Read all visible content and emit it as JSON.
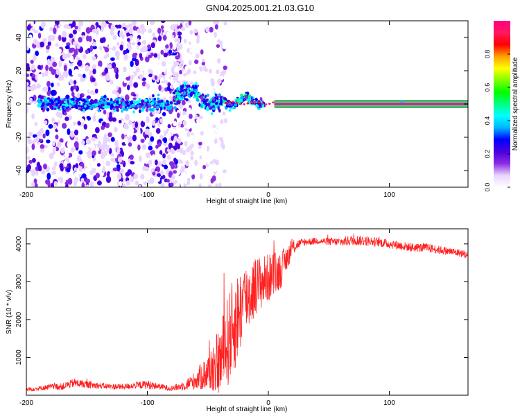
{
  "title": "GN04.2025.001.21.03.G10",
  "chart_data": [
    {
      "type": "heatmap",
      "xlabel": "Height of straight line (km)",
      "ylabel": "Frequency (Hz)",
      "xlim": [
        -200,
        165
      ],
      "ylim": [
        -50,
        50
      ],
      "xticks": [
        "-200",
        "-100",
        "0",
        "100"
      ],
      "yticks": [
        "-40",
        "-20",
        "0",
        "20",
        "40"
      ],
      "grid": false,
      "colorbar": {
        "label": "Normalized spectral amplitude",
        "range": [
          0,
          1
        ],
        "ticks": [
          "0.0",
          "0.2",
          "0.4",
          "0.6",
          "0.8"
        ],
        "colormap": [
          "#ffffff",
          "#e9d4ff",
          "#8a2be2",
          "#4b00e0",
          "#0000ff",
          "#00b4ff",
          "#00ffff",
          "#00ff80",
          "#00ff00",
          "#80ff00",
          "#ffff00",
          "#ffa000",
          "#ff0000",
          "#ff1a60",
          "#ff0080"
        ]
      },
      "features": {
        "noise_region_x": [
          -200,
          -80
        ],
        "scatter_region_x": [
          -80,
          0
        ],
        "clean_tone_x": [
          5,
          165
        ],
        "tone_frequency_hz": 0,
        "spike_x": 110
      }
    },
    {
      "type": "line",
      "xlabel": "Height of straight line (km)",
      "ylabel": "SNR (10 * v/v)",
      "xlim": [
        -200,
        165
      ],
      "ylim": [
        0,
        4400
      ],
      "xticks": [
        "-200",
        "-100",
        "0",
        "100"
      ],
      "yticks": [
        "1000",
        "2000",
        "3000",
        "4000"
      ],
      "grid": false,
      "series_color": "#ff2020",
      "x": [
        -200,
        -190,
        -180,
        -170,
        -160,
        -150,
        -140,
        -130,
        -120,
        -110,
        -100,
        -90,
        -80,
        -70,
        -60,
        -50,
        -40,
        -35,
        -30,
        -25,
        -20,
        -15,
        -10,
        -5,
        0,
        5,
        10,
        15,
        20,
        25,
        30,
        40,
        50,
        60,
        70,
        80,
        90,
        100,
        110,
        120,
        130,
        140,
        150,
        160,
        165
      ],
      "y": [
        150,
        180,
        220,
        230,
        330,
        280,
        250,
        230,
        220,
        260,
        280,
        230,
        180,
        250,
        400,
        600,
        900,
        1300,
        1700,
        2100,
        2500,
        2700,
        2900,
        3000,
        3100,
        3200,
        3300,
        3600,
        3900,
        4000,
        4050,
        4080,
        4060,
        4050,
        4100,
        4080,
        4050,
        4000,
        3950,
        3900,
        3900,
        3850,
        3800,
        3750,
        3700
      ],
      "noise_amplitude": [
        60,
        60,
        80,
        90,
        120,
        100,
        80,
        80,
        80,
        90,
        120,
        80,
        70,
        120,
        250,
        500,
        900,
        1200,
        1300,
        1200,
        1000,
        900,
        800,
        700,
        650,
        600,
        500,
        350,
        200,
        120,
        100,
        90,
        100,
        120,
        140,
        130,
        120,
        120,
        120,
        120,
        120,
        110,
        110,
        110,
        100
      ]
    }
  ]
}
